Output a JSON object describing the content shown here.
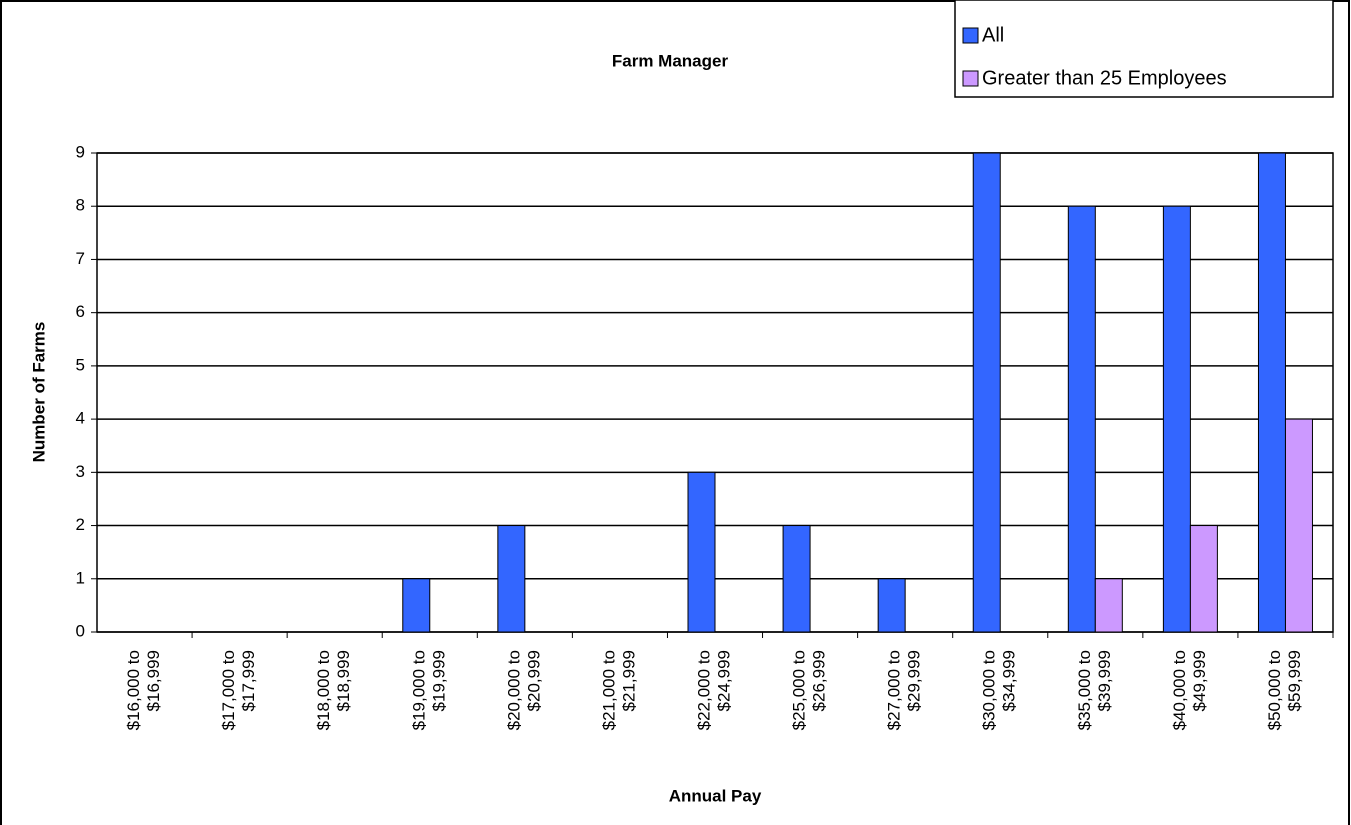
{
  "chart_data": {
    "type": "bar",
    "title": "Farm Manager",
    "x_label": "Annual Pay",
    "y_label": "Number of Farms",
    "categories": [
      [
        "$16,000 to",
        "$16,999"
      ],
      [
        "$17,000 to",
        "$17,999"
      ],
      [
        "$18,000 to",
        "$18,999"
      ],
      [
        "$19,000 to",
        "$19,999"
      ],
      [
        "$20,000 to",
        "$20,999"
      ],
      [
        "$21,000 to",
        "$21,999"
      ],
      [
        "$22,000 to",
        "$24,999"
      ],
      [
        "$25,000 to",
        "$26,999"
      ],
      [
        "$27,000 to",
        "$29,999"
      ],
      [
        "$30,000 to",
        "$34,999"
      ],
      [
        "$35,000 to",
        "$39,999"
      ],
      [
        "$40,000 to",
        "$49,999"
      ],
      [
        "$50,000 to",
        "$59,999"
      ]
    ],
    "series": [
      {
        "name": "All",
        "color": "#3366ff",
        "values": [
          0,
          0,
          0,
          1,
          2,
          0,
          3,
          2,
          1,
          9,
          8,
          8,
          9
        ]
      },
      {
        "name": "Greater than 25 Employees",
        "color": "#cc99ff",
        "values": [
          0,
          0,
          0,
          0,
          0,
          0,
          0,
          0,
          0,
          0,
          1,
          2,
          4
        ]
      }
    ],
    "ylim": [
      0,
      9
    ],
    "yticks": [
      0,
      1,
      2,
      3,
      4,
      5,
      6,
      7,
      8,
      9
    ],
    "grid": true,
    "legend": "top-right"
  }
}
